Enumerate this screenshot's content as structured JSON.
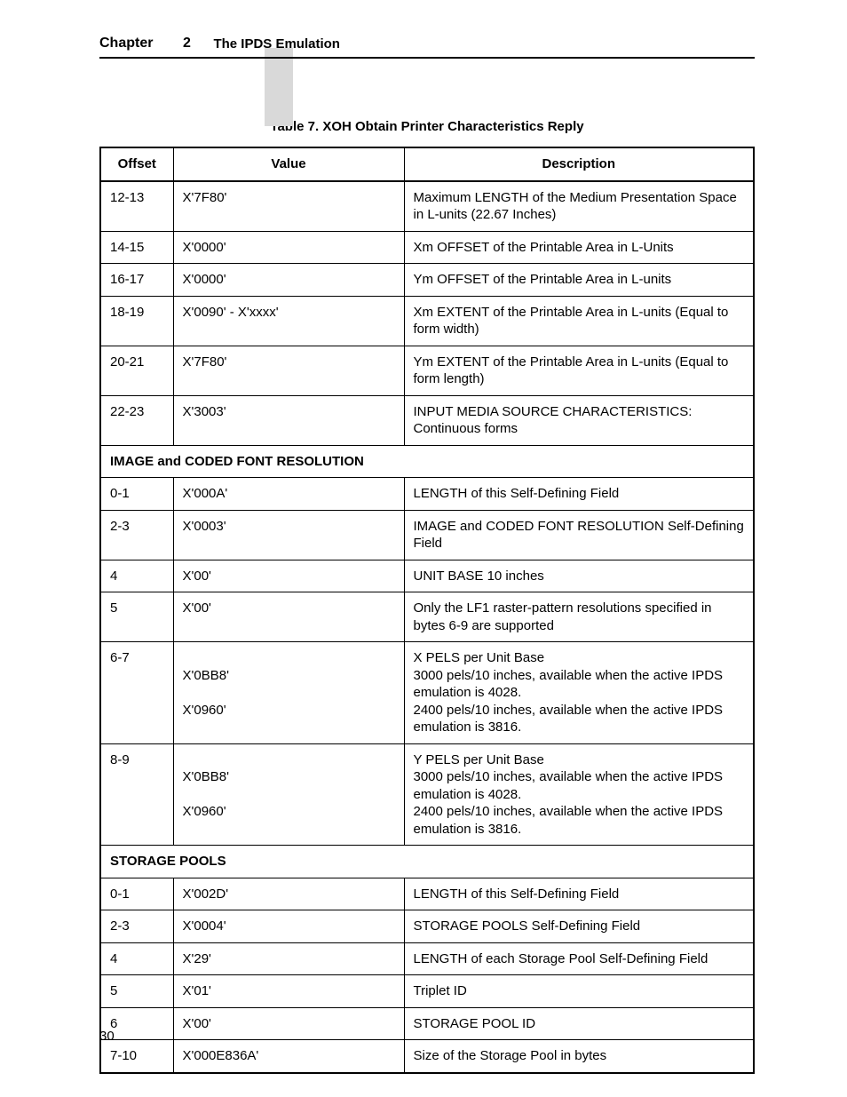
{
  "header": {
    "chapter_label": "Chapter",
    "chapter_number": "2",
    "section_title": "The IPDS Emulation"
  },
  "table": {
    "caption": "Table 7. XOH Obtain Printer Characteristics Reply",
    "columns": [
      "Offset",
      "Value",
      "Description"
    ],
    "rows": [
      {
        "type": "data",
        "offset": "12-13",
        "value": "X'7F80'",
        "desc": "Maximum LENGTH of the Medium Presentation Space in L-units (22.67 Inches)"
      },
      {
        "type": "data",
        "offset": "14-15",
        "value": "X'0000'",
        "desc": "Xm OFFSET of the Printable Area in L-Units"
      },
      {
        "type": "data",
        "offset": "16-17",
        "value": "X'0000'",
        "desc": "Ym OFFSET of the Printable Area in L-units"
      },
      {
        "type": "data",
        "offset": "18-19",
        "value": "X'0090' - X'xxxx'",
        "desc": "Xm EXTENT of the Printable Area in L-units (Equal to form width)"
      },
      {
        "type": "data",
        "offset": "20-21",
        "value": "X'7F80'",
        "desc": "Ym EXTENT of the Printable Area in L-units (Equal to form length)"
      },
      {
        "type": "data",
        "offset": "22-23",
        "value": "X'3003'",
        "desc": "INPUT MEDIA SOURCE CHARACTERISTICS: Continuous forms"
      },
      {
        "type": "section",
        "label": "IMAGE and CODED FONT RESOLUTION"
      },
      {
        "type": "data",
        "offset": "0-1",
        "value": "X'000A'",
        "desc": "LENGTH of this Self-Defining Field"
      },
      {
        "type": "data",
        "offset": "2-3",
        "value": "X'0003'",
        "desc": "IMAGE and CODED FONT RESOLUTION Self-Defining Field"
      },
      {
        "type": "data",
        "offset": "4",
        "value": "X'00'",
        "desc": "UNIT BASE 10 inches"
      },
      {
        "type": "data",
        "offset": "5",
        "value": "X'00'",
        "desc": "Only the LF1 raster-pattern resolutions specified in bytes 6-9 are supported"
      },
      {
        "type": "multi",
        "offset": "6-7",
        "values": [
          "",
          "X'0BB8'",
          "",
          "X'0960'"
        ],
        "descs": [
          "X PELS per Unit Base",
          "3000 pels/10 inches, available when the active IPDS emulation is 4028.",
          "2400 pels/10 inches, available when the active IPDS emulation is 3816."
        ]
      },
      {
        "type": "multi",
        "offset": "8-9",
        "values": [
          "",
          "X'0BB8'",
          "",
          "X'0960'"
        ],
        "descs": [
          "Y PELS per Unit Base",
          "3000 pels/10 inches, available when the active IPDS emulation is 4028.",
          "2400 pels/10 inches, available when the active IPDS emulation is 3816."
        ]
      },
      {
        "type": "section",
        "label": "STORAGE POOLS"
      },
      {
        "type": "data",
        "offset": "0-1",
        "value": "X'002D'",
        "desc": "LENGTH of this Self-Defining Field"
      },
      {
        "type": "data",
        "offset": "2-3",
        "value": "X'0004'",
        "desc": "STORAGE POOLS Self-Defining Field"
      },
      {
        "type": "data",
        "offset": "4",
        "value": "X'29'",
        "desc": "LENGTH of each Storage Pool Self-Defining Field"
      },
      {
        "type": "data",
        "offset": "5",
        "value": "X'01'",
        "desc": "Triplet ID"
      },
      {
        "type": "data",
        "offset": "6",
        "value": "X'00'",
        "desc": "STORAGE POOL ID"
      },
      {
        "type": "data",
        "offset": "7-10",
        "value": "X'000E836A'",
        "desc": "Size of the Storage Pool in bytes"
      }
    ]
  },
  "page_number": "30"
}
